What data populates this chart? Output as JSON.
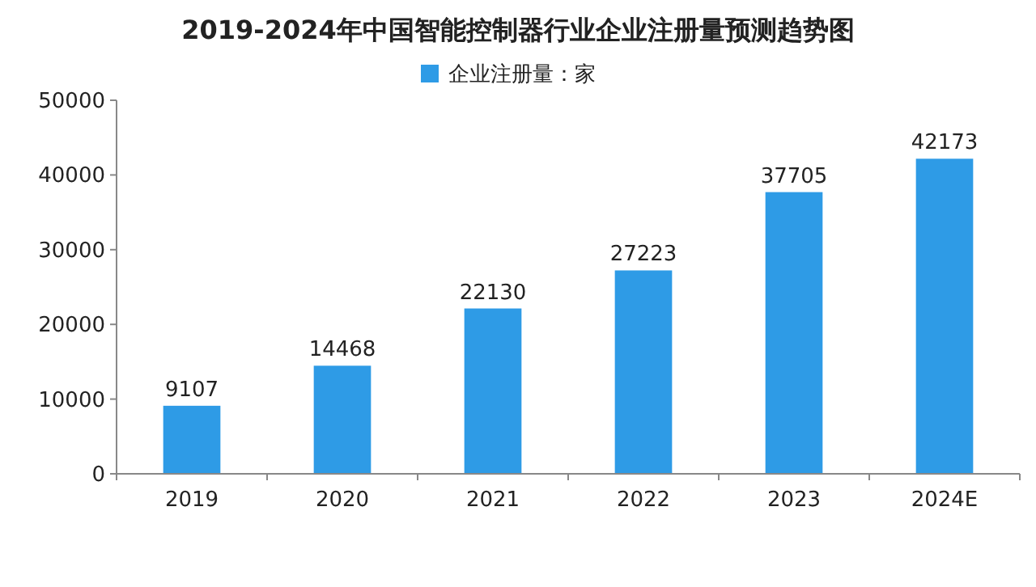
{
  "chart_data": {
    "type": "bar",
    "title": "2019-2024年中国智能控制器行业企业注册量预测趋势图",
    "categories": [
      "2019",
      "2020",
      "2021",
      "2022",
      "2023",
      "2024E"
    ],
    "series": [
      {
        "name": "企业注册量：家",
        "color": "#2e9be6",
        "values": [
          9107,
          14468,
          22130,
          27223,
          37705,
          42173
        ]
      }
    ],
    "ylim": [
      0,
      50000
    ],
    "yticks": [
      0,
      10000,
      20000,
      30000,
      40000,
      50000
    ],
    "data_labels": true,
    "legend": "top"
  }
}
